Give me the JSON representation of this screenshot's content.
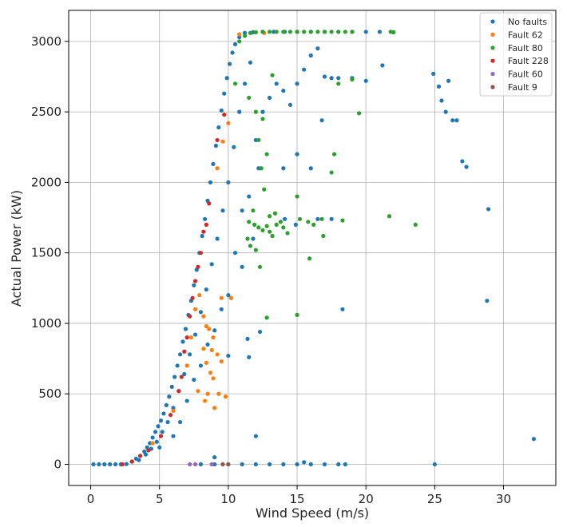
{
  "chart_data": {
    "type": "scatter",
    "title": "",
    "xlabel": "Wind Speed (m/s)",
    "ylabel": "Actual Power (kW)",
    "xlim": [
      -1.6,
      33.8
    ],
    "ylim": [
      -150,
      3220
    ],
    "xticks": [
      0,
      5,
      10,
      15,
      20,
      25,
      30
    ],
    "yticks": [
      0,
      500,
      1000,
      1500,
      2000,
      2500,
      3000
    ],
    "grid": true,
    "legend_position": "top-right",
    "series": [
      {
        "name": "No faults",
        "color": "#1f77b4",
        "points": [
          [
            0.2,
            0
          ],
          [
            0.6,
            0
          ],
          [
            1.0,
            0
          ],
          [
            1.4,
            0
          ],
          [
            1.8,
            0
          ],
          [
            2.2,
            0
          ],
          [
            2.6,
            2
          ],
          [
            3.0,
            20
          ],
          [
            3.3,
            40
          ],
          [
            3.6,
            60
          ],
          [
            3.9,
            90
          ],
          [
            4.1,
            120
          ],
          [
            4.3,
            150
          ],
          [
            4.5,
            190
          ],
          [
            4.7,
            230
          ],
          [
            4.9,
            270
          ],
          [
            5.1,
            310
          ],
          [
            5.3,
            360
          ],
          [
            5.5,
            420
          ],
          [
            5.7,
            480
          ],
          [
            5.9,
            550
          ],
          [
            6.1,
            620
          ],
          [
            6.3,
            700
          ],
          [
            6.5,
            780
          ],
          [
            6.7,
            870
          ],
          [
            6.9,
            960
          ],
          [
            7.1,
            1060
          ],
          [
            7.3,
            1160
          ],
          [
            7.5,
            1270
          ],
          [
            7.7,
            1380
          ],
          [
            7.9,
            1500
          ],
          [
            8.1,
            1620
          ],
          [
            8.3,
            1740
          ],
          [
            8.5,
            1870
          ],
          [
            8.7,
            2000
          ],
          [
            8.9,
            2130
          ],
          [
            9.1,
            2260
          ],
          [
            9.3,
            2390
          ],
          [
            9.5,
            2510
          ],
          [
            9.7,
            2630
          ],
          [
            9.9,
            2740
          ],
          [
            10.1,
            2840
          ],
          [
            10.3,
            2920
          ],
          [
            10.5,
            2980
          ],
          [
            10.8,
            3030
          ],
          [
            11.2,
            3060
          ],
          [
            11.8,
            3065
          ],
          [
            12.5,
            3068
          ],
          [
            13.3,
            3068
          ],
          [
            14.1,
            3068
          ],
          [
            15.0,
            3068
          ],
          [
            16.0,
            3068
          ],
          [
            17.0,
            3068
          ],
          [
            18.0,
            3068
          ],
          [
            19.0,
            3068
          ],
          [
            20.0,
            3068
          ],
          [
            21.0,
            3068
          ],
          [
            3.5,
            30
          ],
          [
            4.0,
            70
          ],
          [
            4.4,
            110
          ],
          [
            4.8,
            160
          ],
          [
            5.2,
            230
          ],
          [
            5.6,
            300
          ],
          [
            6.0,
            400
          ],
          [
            6.4,
            520
          ],
          [
            6.8,
            640
          ],
          [
            7.2,
            780
          ],
          [
            7.6,
            920
          ],
          [
            8.0,
            1080
          ],
          [
            8.4,
            1240
          ],
          [
            8.8,
            1420
          ],
          [
            9.2,
            1600
          ],
          [
            9.6,
            1800
          ],
          [
            10.0,
            2000
          ],
          [
            10.4,
            2250
          ],
          [
            10.8,
            2500
          ],
          [
            11.2,
            2700
          ],
          [
            11.6,
            2850
          ],
          [
            5.0,
            120
          ],
          [
            6.0,
            200
          ],
          [
            6.5,
            300
          ],
          [
            7.0,
            450
          ],
          [
            7.5,
            600
          ],
          [
            8.0,
            700
          ],
          [
            8.5,
            850
          ],
          [
            9.0,
            950
          ],
          [
            9.5,
            1100
          ],
          [
            10.0,
            1200
          ],
          [
            10.2,
            1180
          ],
          [
            10.5,
            1500
          ],
          [
            11.0,
            1800
          ],
          [
            11.5,
            1900
          ],
          [
            12.0,
            2300
          ],
          [
            12.2,
            2100
          ],
          [
            12.5,
            2500
          ],
          [
            13.0,
            2600
          ],
          [
            13.5,
            2700
          ],
          [
            14.0,
            2650
          ],
          [
            14.5,
            2550
          ],
          [
            15.0,
            2700
          ],
          [
            15.5,
            2800
          ],
          [
            16.0,
            2900
          ],
          [
            16.5,
            2950
          ],
          [
            17.0,
            2750
          ],
          [
            17.5,
            2740
          ],
          [
            18.0,
            2740
          ],
          [
            19.0,
            2740
          ],
          [
            20.0,
            2720
          ],
          [
            16.8,
            2440
          ],
          [
            15.0,
            2200
          ],
          [
            16.0,
            2100
          ],
          [
            14.0,
            2100
          ],
          [
            21.2,
            2830
          ],
          [
            24.9,
            2770
          ],
          [
            25.3,
            2680
          ],
          [
            25.5,
            2580
          ],
          [
            25.8,
            2500
          ],
          [
            26.0,
            2720
          ],
          [
            26.3,
            2440
          ],
          [
            26.6,
            2440
          ],
          [
            27.0,
            2150
          ],
          [
            27.3,
            2110
          ],
          [
            28.9,
            1810
          ],
          [
            28.8,
            1160
          ],
          [
            32.2,
            180
          ],
          [
            18.3,
            1100
          ],
          [
            25.0,
            0
          ],
          [
            12.3,
            940
          ],
          [
            11.5,
            760
          ],
          [
            10.0,
            770
          ],
          [
            11.4,
            890
          ],
          [
            12.0,
            200
          ],
          [
            11.0,
            1400
          ],
          [
            11.8,
            1600
          ],
          [
            14.1,
            1740
          ],
          [
            16.5,
            1740
          ],
          [
            17.5,
            1740
          ],
          [
            14.9,
            1700
          ],
          [
            8.0,
            0
          ],
          [
            9.0,
            0
          ],
          [
            10.0,
            0
          ],
          [
            11.0,
            0
          ],
          [
            12.0,
            0
          ],
          [
            13.0,
            0
          ],
          [
            14.0,
            0
          ],
          [
            15.0,
            0
          ],
          [
            16.0,
            0
          ],
          [
            17.0,
            0
          ],
          [
            18.0,
            0
          ],
          [
            18.5,
            0
          ],
          [
            15.5,
            15
          ],
          [
            9.0,
            50
          ]
        ]
      },
      {
        "name": "Fault 62",
        "color": "#ff7f0e",
        "points": [
          [
            3.0,
            20
          ],
          [
            4.5,
            150
          ],
          [
            6.0,
            380
          ],
          [
            7.0,
            700
          ],
          [
            7.3,
            900
          ],
          [
            7.6,
            1100
          ],
          [
            7.9,
            1200
          ],
          [
            8.2,
            1050
          ],
          [
            8.4,
            980
          ],
          [
            8.6,
            960
          ],
          [
            8.2,
            820
          ],
          [
            8.8,
            810
          ],
          [
            9.2,
            780
          ],
          [
            8.4,
            720
          ],
          [
            8.7,
            650
          ],
          [
            8.9,
            610
          ],
          [
            9.3,
            500
          ],
          [
            8.3,
            450
          ],
          [
            9.8,
            480
          ],
          [
            9.0,
            400
          ],
          [
            9.5,
            1180
          ],
          [
            9.2,
            2100
          ],
          [
            9.6,
            2290
          ],
          [
            10.0,
            2420
          ],
          [
            8.9,
            900
          ],
          [
            9.5,
            730
          ],
          [
            10.2,
            1180
          ],
          [
            10.8,
            3050
          ],
          [
            12.6,
            3060
          ],
          [
            22.0,
            3065
          ],
          [
            8.5,
            500
          ],
          [
            7.8,
            520
          ]
        ]
      },
      {
        "name": "Fault 80",
        "color": "#2ca02c",
        "points": [
          [
            10.8,
            3000
          ],
          [
            11.2,
            3040
          ],
          [
            11.6,
            3060
          ],
          [
            12.0,
            3065
          ],
          [
            12.5,
            3068
          ],
          [
            13.0,
            3068
          ],
          [
            13.5,
            3068
          ],
          [
            14.0,
            3068
          ],
          [
            14.5,
            3068
          ],
          [
            15.0,
            3068
          ],
          [
            15.5,
            3068
          ],
          [
            16.0,
            3068
          ],
          [
            16.5,
            3068
          ],
          [
            17.0,
            3068
          ],
          [
            17.5,
            3068
          ],
          [
            18.0,
            3068
          ],
          [
            18.5,
            3068
          ],
          [
            19.0,
            3068
          ],
          [
            21.8,
            3068
          ],
          [
            22.0,
            3065
          ],
          [
            10.5,
            2700
          ],
          [
            11.5,
            2600
          ],
          [
            12.0,
            2500
          ],
          [
            12.5,
            2450
          ],
          [
            12.2,
            2300
          ],
          [
            12.8,
            2200
          ],
          [
            12.4,
            2100
          ],
          [
            12.6,
            1950
          ],
          [
            11.8,
            1800
          ],
          [
            11.5,
            1720
          ],
          [
            11.9,
            1700
          ],
          [
            12.2,
            1680
          ],
          [
            12.5,
            1660
          ],
          [
            12.8,
            1690
          ],
          [
            13.0,
            1650
          ],
          [
            13.2,
            1620
          ],
          [
            13.5,
            1700
          ],
          [
            13.8,
            1720
          ],
          [
            14.0,
            1680
          ],
          [
            14.3,
            1640
          ],
          [
            11.4,
            1600
          ],
          [
            11.6,
            1550
          ],
          [
            12.0,
            1520
          ],
          [
            13.0,
            1760
          ],
          [
            13.4,
            1780
          ],
          [
            12.3,
            1400
          ],
          [
            15.0,
            1900
          ],
          [
            15.2,
            1740
          ],
          [
            15.8,
            1720
          ],
          [
            16.2,
            1700
          ],
          [
            16.8,
            1740
          ],
          [
            16.9,
            1620
          ],
          [
            17.5,
            2070
          ],
          [
            17.7,
            2200
          ],
          [
            18.3,
            1730
          ],
          [
            19.5,
            2490
          ],
          [
            18.0,
            2700
          ],
          [
            19.0,
            2730
          ],
          [
            21.7,
            1760
          ],
          [
            23.6,
            1700
          ],
          [
            15.9,
            1460
          ],
          [
            12.8,
            1040
          ],
          [
            15.0,
            1060
          ],
          [
            13.2,
            2760
          ]
        ]
      },
      {
        "name": "Fault 228",
        "color": "#d62728",
        "points": [
          [
            2.3,
            0
          ],
          [
            3.0,
            20
          ],
          [
            3.6,
            60
          ],
          [
            4.2,
            100
          ],
          [
            5.1,
            200
          ],
          [
            5.8,
            350
          ],
          [
            6.4,
            520
          ],
          [
            6.6,
            620
          ],
          [
            6.8,
            800
          ],
          [
            7.0,
            900
          ],
          [
            7.2,
            1050
          ],
          [
            7.4,
            1180
          ],
          [
            7.6,
            1300
          ],
          [
            7.8,
            1400
          ],
          [
            8.0,
            1500
          ],
          [
            8.2,
            1650
          ],
          [
            8.4,
            1700
          ],
          [
            8.6,
            1850
          ],
          [
            9.2,
            2300
          ],
          [
            9.7,
            2480
          ]
        ]
      },
      {
        "name": "Fault 60",
        "color": "#9467bd",
        "points": [
          [
            7.2,
            0
          ],
          [
            7.6,
            0
          ],
          [
            8.8,
            0
          ]
        ]
      },
      {
        "name": "Fault 9",
        "color": "#8c564b",
        "points": [
          [
            9.6,
            0
          ],
          [
            10.0,
            0
          ]
        ]
      }
    ]
  }
}
